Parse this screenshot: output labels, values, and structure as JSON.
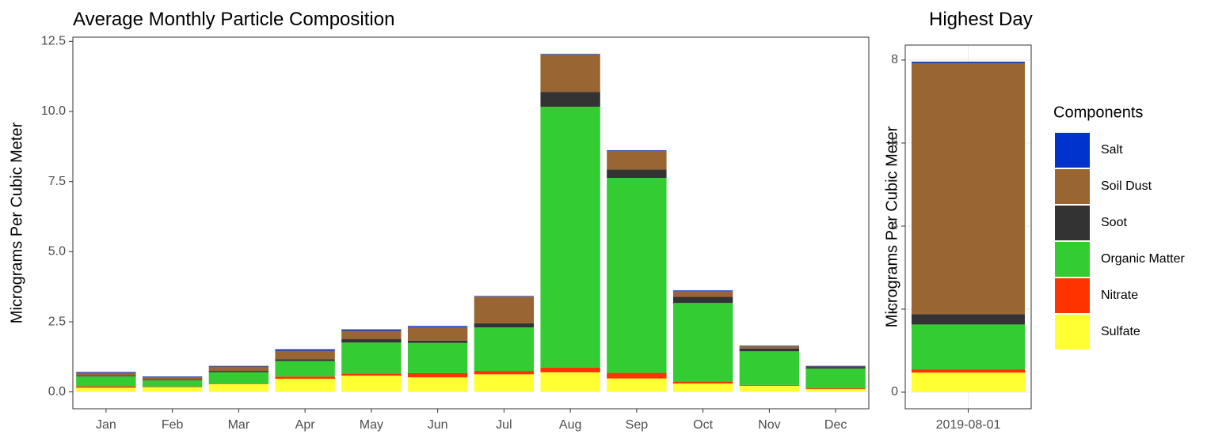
{
  "chart_data": [
    {
      "type": "bar",
      "stacked": true,
      "title": "Average Monthly Particle Composition",
      "y_label": "Micrograms Per Cubic Meter",
      "categories": [
        "Jan",
        "Feb",
        "Mar",
        "Apr",
        "May",
        "Jun",
        "Jul",
        "Aug",
        "Sep",
        "Oct",
        "Nov",
        "Dec"
      ],
      "series": [
        {
          "name": "Sulfate",
          "color": "#ffff33",
          "values": [
            0.15,
            0.17,
            0.28,
            0.47,
            0.58,
            0.52,
            0.63,
            0.7,
            0.48,
            0.3,
            0.22,
            0.1
          ]
        },
        {
          "name": "Nitrate",
          "color": "#ff3300",
          "values": [
            0.05,
            0.02,
            0.02,
            0.08,
            0.08,
            0.15,
            0.12,
            0.17,
            0.2,
            0.07,
            0.03,
            0.03
          ]
        },
        {
          "name": "Organic Matter",
          "color": "#33cc33",
          "values": [
            0.35,
            0.22,
            0.4,
            0.55,
            1.1,
            1.08,
            1.55,
            9.3,
            6.95,
            2.8,
            1.2,
            0.7
          ]
        },
        {
          "name": "Soot",
          "color": "#333333",
          "values": [
            0.03,
            0.02,
            0.05,
            0.07,
            0.12,
            0.08,
            0.15,
            0.53,
            0.3,
            0.22,
            0.1,
            0.05
          ]
        },
        {
          "name": "Soil Dust",
          "color": "#996633",
          "values": [
            0.1,
            0.1,
            0.16,
            0.3,
            0.3,
            0.48,
            0.95,
            1.33,
            0.67,
            0.2,
            0.08,
            0.03
          ]
        },
        {
          "name": "Salt",
          "color": "#0033cc",
          "values": [
            0.03,
            0.02,
            0.02,
            0.05,
            0.05,
            0.04,
            0.02,
            0.02,
            0.02,
            0.03,
            0.02,
            0.02
          ]
        }
      ],
      "ylim": [
        -0.6,
        12.65
      ],
      "yticks": [
        {
          "value": 0,
          "label": "0.0"
        },
        2.5,
        {
          "value": 5,
          "label": "5.0"
        },
        7.5,
        {
          "value": 10,
          "label": "10.0"
        },
        12.5
      ],
      "grid": false
    },
    {
      "type": "bar",
      "stacked": true,
      "title": "Highest Day",
      "y_label": "Micrograms Per Cubic Meter",
      "categories": [
        "2019-08-01"
      ],
      "series": [
        {
          "name": "Sulfate",
          "color": "#ffff33",
          "values": [
            0.47
          ]
        },
        {
          "name": "Nitrate",
          "color": "#ff3300",
          "values": [
            0.08
          ]
        },
        {
          "name": "Organic Matter",
          "color": "#33cc33",
          "values": [
            1.08
          ]
        },
        {
          "name": "Soot",
          "color": "#333333",
          "values": [
            0.25
          ]
        },
        {
          "name": "Soil Dust",
          "color": "#996633",
          "values": [
            6.05
          ]
        },
        {
          "name": "Salt",
          "color": "#0033cc",
          "values": [
            0.03
          ]
        }
      ],
      "ylim": [
        -0.4,
        8.36
      ],
      "yticks": [
        0,
        2,
        4,
        6,
        8
      ],
      "grid": true
    }
  ],
  "legend": {
    "title": "Components"
  }
}
